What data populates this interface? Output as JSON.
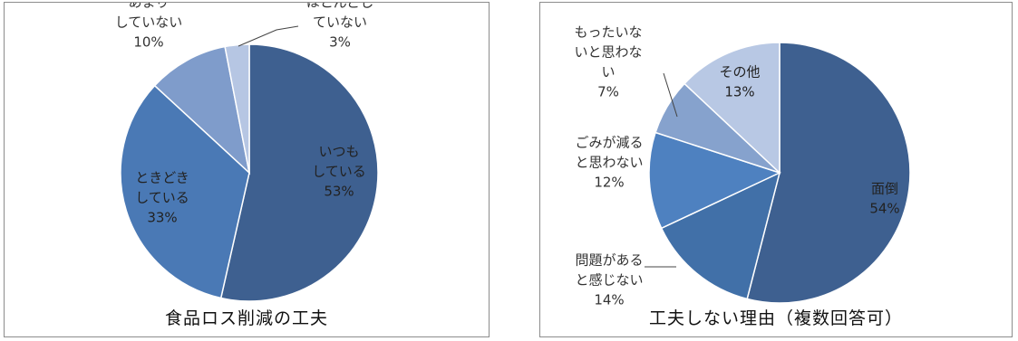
{
  "chart_data": [
    {
      "type": "pie",
      "title": "食品ロス削減の工夫",
      "slices": [
        {
          "label": [
            "いつも",
            "している"
          ],
          "pct": "53%",
          "value": 53,
          "color": "#3e6090"
        },
        {
          "label": [
            "ときどき",
            "している"
          ],
          "pct": "33%",
          "value": 33,
          "color": "#4a79b5"
        },
        {
          "label": [
            "あまり",
            "していない"
          ],
          "pct": "10%",
          "value": 10,
          "color": "#7f9ccb"
        },
        {
          "label": [
            "ほとんどし",
            "ていない"
          ],
          "pct": "3%",
          "value": 3,
          "color": "#b6c6e3"
        }
      ]
    },
    {
      "type": "pie",
      "title": "工夫しない理由（複数回答可）",
      "slices": [
        {
          "label": [
            "面倒"
          ],
          "pct": "54%",
          "value": 54,
          "color": "#3e6090"
        },
        {
          "label": [
            "問題がある",
            "と感じない"
          ],
          "pct": "14%",
          "value": 14,
          "color": "#4170a8"
        },
        {
          "label": [
            "ごみが減る",
            "と思わない"
          ],
          "pct": "12%",
          "value": 12,
          "color": "#4e81c0"
        },
        {
          "label": [
            "もったいな",
            "いと思わな",
            "い"
          ],
          "pct": "7%",
          "value": 7,
          "color": "#86a2cd"
        },
        {
          "label": [
            "その他"
          ],
          "pct": "13%",
          "value": 13,
          "color": "#b8c8e4"
        }
      ]
    }
  ]
}
